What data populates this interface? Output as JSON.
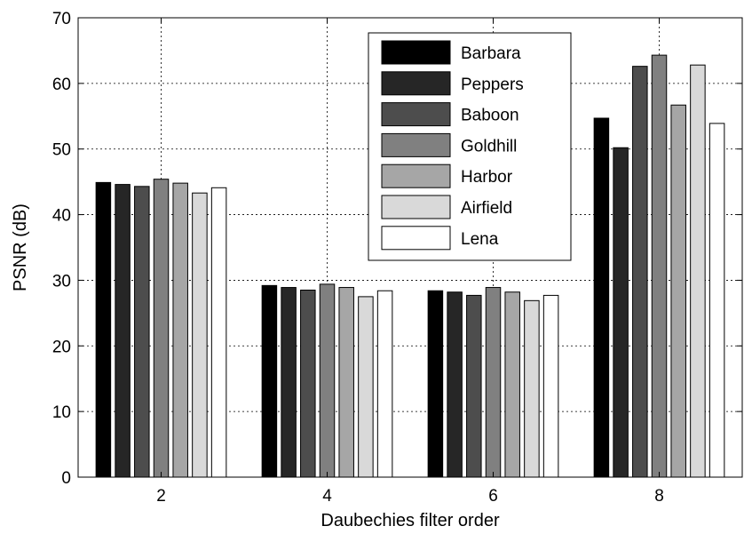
{
  "chart_data": {
    "type": "bar",
    "xlabel": "Daubechies filter order",
    "ylabel": "PSNR (dB)",
    "ylim": [
      0,
      70
    ],
    "yticks": [
      "0",
      "10",
      "20",
      "30",
      "40",
      "50",
      "60",
      "70"
    ],
    "categories": [
      "2",
      "4",
      "6",
      "8"
    ],
    "grid": true,
    "legend_position": "top-center",
    "series": [
      {
        "name": "Barbara",
        "color": "#000000",
        "values": [
          44.9,
          29.2,
          28.4,
          54.7
        ]
      },
      {
        "name": "Peppers",
        "color": "#262626",
        "values": [
          44.6,
          28.9,
          28.2,
          50.2
        ]
      },
      {
        "name": "Baboon",
        "color": "#4d4d4d",
        "values": [
          44.3,
          28.5,
          27.7,
          62.6
        ]
      },
      {
        "name": "Goldhill",
        "color": "#808080",
        "values": [
          45.4,
          29.4,
          28.9,
          64.3
        ]
      },
      {
        "name": "Harbor",
        "color": "#a6a6a6",
        "values": [
          44.8,
          28.9,
          28.2,
          56.7
        ]
      },
      {
        "name": "Airfield",
        "color": "#d9d9d9",
        "values": [
          43.3,
          27.5,
          26.9,
          62.8
        ]
      },
      {
        "name": "Lena",
        "color": "#ffffff",
        "values": [
          44.1,
          28.4,
          27.7,
          53.9
        ]
      }
    ]
  }
}
